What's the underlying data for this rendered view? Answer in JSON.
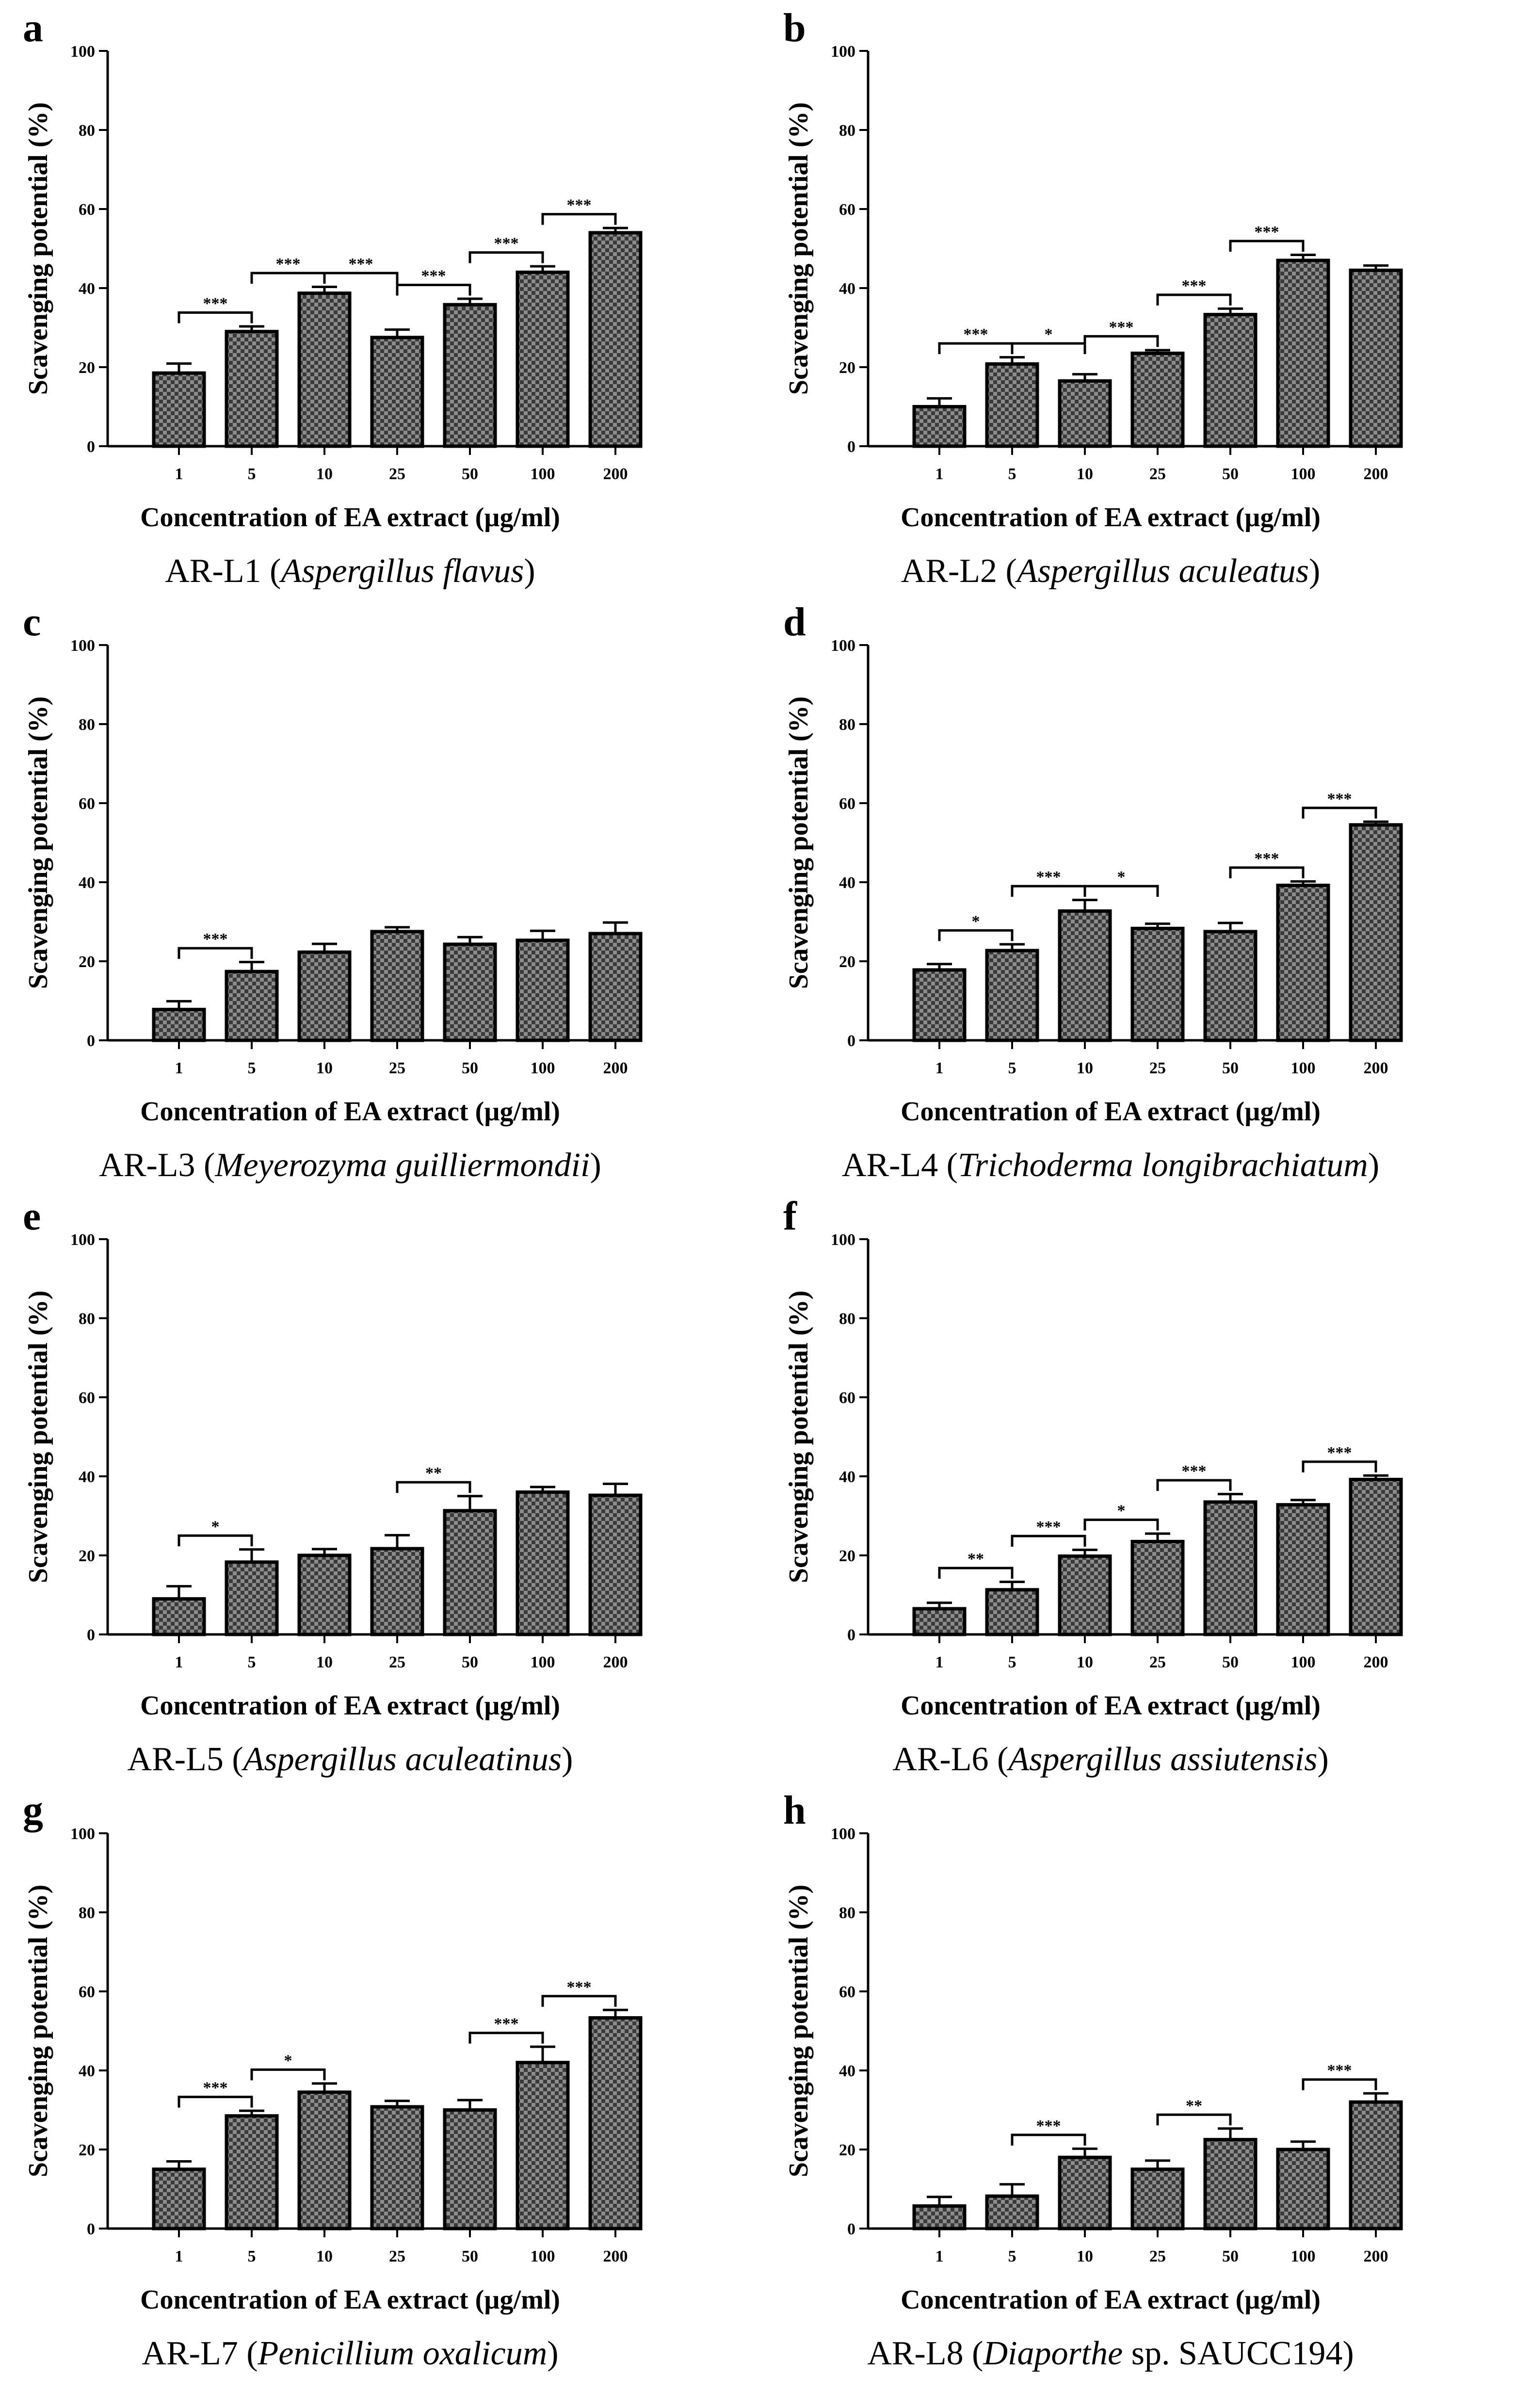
{
  "figure": {
    "colors": {
      "bar_fill": "#8c8c8c",
      "bar_check": "#3a3a3a",
      "ink": "#000000",
      "background": "#ffffff"
    }
  },
  "chart_data": [
    {
      "panel": "a",
      "type": "bar",
      "caption_prefix": "AR-L1 (",
      "caption_italic": "Aspergillus flavus",
      "caption_suffix": ")",
      "categories": [
        "1",
        "5",
        "10",
        "25",
        "50",
        "100",
        "200"
      ],
      "values": [
        18.5,
        29,
        38.7,
        27.5,
        35.8,
        44,
        54
      ],
      "errors": [
        2.4,
        1.3,
        1.6,
        2.0,
        1.5,
        1.5,
        1.2
      ],
      "significance": [
        {
          "from": 0,
          "to": 1,
          "label": "***"
        },
        {
          "from": 1,
          "to": 2,
          "label": "***"
        },
        {
          "from": 2,
          "to": 3,
          "label": "***"
        },
        {
          "from": 3,
          "to": 4,
          "label": "***"
        },
        {
          "from": 4,
          "to": 5,
          "label": "***"
        },
        {
          "from": 5,
          "to": 6,
          "label": "***"
        }
      ],
      "xlabel": "Concentration of EA extract (µg/ml)",
      "ylabel": "Scavenging potential (%)",
      "ylim": [
        0,
        100
      ],
      "yticks": [
        "0",
        "20",
        "40",
        "60",
        "80",
        "100"
      ]
    },
    {
      "panel": "b",
      "type": "bar",
      "caption_prefix": "AR-L2 (",
      "caption_italic": "Aspergillus aculeatus",
      "caption_suffix": ")",
      "categories": [
        "1",
        "5",
        "10",
        "25",
        "50",
        "100",
        "200"
      ],
      "values": [
        10,
        20.8,
        16.5,
        23.5,
        33.3,
        47,
        44.5
      ],
      "errors": [
        2.1,
        1.7,
        1.7,
        0.8,
        1.5,
        1.4,
        1.2
      ],
      "significance": [
        {
          "from": 0,
          "to": 1,
          "label": "***"
        },
        {
          "from": 1,
          "to": 2,
          "label": "*"
        },
        {
          "from": 2,
          "to": 3,
          "label": "***"
        },
        {
          "from": 3,
          "to": 4,
          "label": "***"
        },
        {
          "from": 4,
          "to": 5,
          "label": "***"
        }
      ],
      "xlabel": "Concentration of EA extract (µg/ml)",
      "ylabel": "Scavenging potential (%)",
      "ylim": [
        0,
        100
      ],
      "yticks": [
        "0",
        "20",
        "40",
        "60",
        "80",
        "100"
      ]
    },
    {
      "panel": "c",
      "type": "bar",
      "caption_prefix": "AR-L3 (",
      "caption_italic": "Meyerozyma guilliermondii",
      "caption_suffix": ")",
      "categories": [
        "1",
        "5",
        "10",
        "25",
        "50",
        "100",
        "200"
      ],
      "values": [
        7.8,
        17.4,
        22.3,
        27.5,
        24.3,
        25.3,
        27
      ],
      "errors": [
        2.1,
        2.4,
        2.1,
        1.1,
        1.8,
        2.4,
        2.8
      ],
      "significance": [
        {
          "from": 0,
          "to": 1,
          "label": "***"
        }
      ],
      "xlabel": "Concentration of EA extract (µg/ml)",
      "ylabel": "Scavenging potential (%)",
      "ylim": [
        0,
        100
      ],
      "yticks": [
        "0",
        "20",
        "40",
        "60",
        "80",
        "100"
      ]
    },
    {
      "panel": "d",
      "type": "bar",
      "caption_prefix": "AR-L4 (",
      "caption_italic": "Trichoderma longibrachiatum",
      "caption_suffix": ")",
      "categories": [
        "1",
        "5",
        "10",
        "25",
        "50",
        "100",
        "200"
      ],
      "values": [
        17.8,
        22.7,
        32.7,
        28.3,
        27.5,
        39.2,
        54.5
      ],
      "errors": [
        1.5,
        1.6,
        2.8,
        1.2,
        2.2,
        1.0,
        0.8
      ],
      "significance": [
        {
          "from": 0,
          "to": 1,
          "label": "*"
        },
        {
          "from": 1,
          "to": 2,
          "label": "***"
        },
        {
          "from": 2,
          "to": 3,
          "label": "*"
        },
        {
          "from": 4,
          "to": 5,
          "label": "***"
        },
        {
          "from": 5,
          "to": 6,
          "label": "***"
        }
      ],
      "xlabel": "Concentration of EA extract (µg/ml)",
      "ylabel": "Scavenging potential (%)",
      "ylim": [
        0,
        100
      ],
      "yticks": [
        "0",
        "20",
        "40",
        "60",
        "80",
        "100"
      ]
    },
    {
      "panel": "e",
      "type": "bar",
      "caption_prefix": "AR-L5 (",
      "caption_italic": "Aspergillus aculeatinus",
      "caption_suffix": ")",
      "categories": [
        "1",
        "5",
        "10",
        "25",
        "50",
        "100",
        "200"
      ],
      "values": [
        9,
        18.3,
        20,
        21.7,
        31.3,
        36,
        35.2
      ],
      "errors": [
        3.2,
        3.2,
        1.6,
        3.4,
        3.7,
        1.3,
        2.9
      ],
      "significance": [
        {
          "from": 0,
          "to": 1,
          "label": "*"
        },
        {
          "from": 3,
          "to": 4,
          "label": "**"
        }
      ],
      "xlabel": "Concentration of EA extract (µg/ml)",
      "ylabel": "Scavenging potential (%)",
      "ylim": [
        0,
        100
      ],
      "yticks": [
        "0",
        "20",
        "40",
        "60",
        "80",
        "100"
      ]
    },
    {
      "panel": "f",
      "type": "bar",
      "caption_prefix": "AR-L6 (",
      "caption_italic": "Aspergillus assiutensis",
      "caption_suffix": ")",
      "categories": [
        "1",
        "5",
        "10",
        "25",
        "50",
        "100",
        "200"
      ],
      "values": [
        6.5,
        11.3,
        19.8,
        23.5,
        33.5,
        32.8,
        39.2
      ],
      "errors": [
        1.5,
        2.0,
        1.6,
        2.0,
        2.0,
        1.2,
        1.0
      ],
      "significance": [
        {
          "from": 0,
          "to": 1,
          "label": "**"
        },
        {
          "from": 1,
          "to": 2,
          "label": "***"
        },
        {
          "from": 2,
          "to": 3,
          "label": "*"
        },
        {
          "from": 3,
          "to": 4,
          "label": "***"
        },
        {
          "from": 5,
          "to": 6,
          "label": "***"
        }
      ],
      "xlabel": "Concentration of EA extract (µg/ml)",
      "ylabel": "Scavenging potential (%)",
      "ylim": [
        0,
        100
      ],
      "yticks": [
        "0",
        "20",
        "40",
        "60",
        "80",
        "100"
      ]
    },
    {
      "panel": "g",
      "type": "bar",
      "caption_prefix": "AR-L7 (",
      "caption_italic": "Penicillium oxalicum",
      "caption_suffix": ")",
      "categories": [
        "1",
        "5",
        "10",
        "25",
        "50",
        "100",
        "200"
      ],
      "values": [
        15,
        28.5,
        34.5,
        30.8,
        30,
        42,
        53.3
      ],
      "errors": [
        2.0,
        1.3,
        2.2,
        1.5,
        2.5,
        4.0,
        2.0
      ],
      "significance": [
        {
          "from": 0,
          "to": 1,
          "label": "***"
        },
        {
          "from": 1,
          "to": 2,
          "label": "*"
        },
        {
          "from": 4,
          "to": 5,
          "label": "***"
        },
        {
          "from": 5,
          "to": 6,
          "label": "***"
        }
      ],
      "xlabel": "Concentration of EA extract (µg/ml)",
      "ylabel": "Scavenging potential (%)",
      "ylim": [
        0,
        100
      ],
      "yticks": [
        "0",
        "20",
        "40",
        "60",
        "80",
        "100"
      ]
    },
    {
      "panel": "h",
      "type": "bar",
      "caption_prefix": "AR-L8 (",
      "caption_italic": "Diaporthe",
      "caption_suffix": " sp. SAUCC194)",
      "categories": [
        "1",
        "5",
        "10",
        "25",
        "50",
        "100",
        "200"
      ],
      "values": [
        5.7,
        8.2,
        18,
        15,
        22.5,
        20,
        32
      ],
      "errors": [
        2.3,
        3.0,
        2.2,
        2.2,
        2.8,
        2.0,
        2.2
      ],
      "significance": [
        {
          "from": 1,
          "to": 2,
          "label": "***"
        },
        {
          "from": 3,
          "to": 4,
          "label": "**"
        },
        {
          "from": 5,
          "to": 6,
          "label": "***"
        }
      ],
      "xlabel": "Concentration of EA extract (µg/ml)",
      "ylabel": "Scavenging potential (%)",
      "ylim": [
        0,
        100
      ],
      "yticks": [
        "0",
        "20",
        "40",
        "60",
        "80",
        "100"
      ]
    }
  ]
}
